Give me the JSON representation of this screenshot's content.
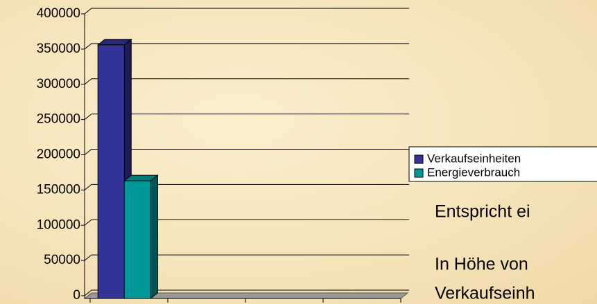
{
  "chart_data": {
    "type": "bar3d",
    "categories": [
      null,
      null,
      null,
      null
    ],
    "series": [
      {
        "name": "Verkaufseinheiten",
        "color": "#333399",
        "values": [
          356000,
          null,
          null,
          null
        ]
      },
      {
        "name": "Energieverbrauch",
        "color": "#009999",
        "values": [
          163000,
          null,
          null,
          null
        ]
      }
    ],
    "ylim": [
      0,
      400000
    ],
    "yticks": [
      0,
      50000,
      100000,
      150000,
      200000,
      250000,
      300000,
      350000,
      400000
    ],
    "grid": true,
    "legend": "right",
    "annotations": [
      "Entspricht ei",
      "In Höhe von",
      "Verkaufseinh"
    ]
  }
}
